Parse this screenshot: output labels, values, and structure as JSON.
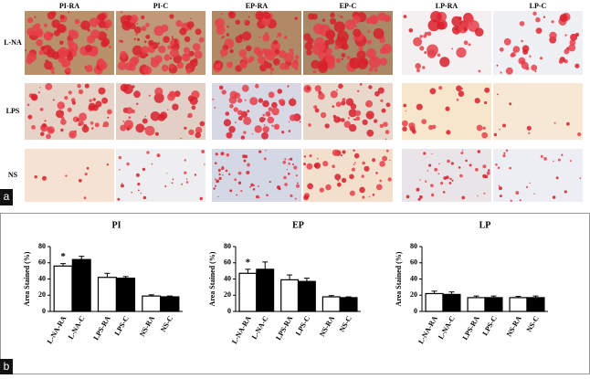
{
  "figure": {
    "column_labels": [
      "PI-RA",
      "PI-C",
      "EP-RA",
      "EP-C",
      "LP-RA",
      "LP-C"
    ],
    "row_labels": [
      "L-NA",
      "LPS",
      "NS"
    ],
    "panel_labels": [
      "a",
      "b"
    ]
  },
  "chart_data": [
    {
      "type": "bar",
      "title": "PI",
      "y_label": "Area Stained (%)",
      "categories": [
        "L-NA-RA",
        "L-NA-C",
        "LPS-RA",
        "LPS-C",
        "NS-RA",
        "NS-C"
      ],
      "values": [
        56,
        64,
        42,
        41,
        19,
        18
      ],
      "errors": [
        3,
        4,
        5,
        2,
        1.5,
        1
      ],
      "colors": [
        "#ffffff",
        "#000000",
        "#ffffff",
        "#000000",
        "#ffffff",
        "#000000"
      ],
      "ylim": [
        0,
        80
      ],
      "yticks": [
        0,
        20,
        40,
        60,
        80
      ],
      "annotations": [
        {
          "text": "*",
          "category": "L-NA-RA"
        }
      ]
    },
    {
      "type": "bar",
      "title": "EP",
      "y_label": "Area Stained (%)",
      "categories": [
        "L-NA-RA",
        "L-NA-C",
        "LPS-RA",
        "LPS-C",
        "NS-RA",
        "NS-C"
      ],
      "values": [
        47,
        52,
        39,
        37,
        18,
        17
      ],
      "errors": [
        5,
        9,
        6,
        4,
        1.5,
        1
      ],
      "colors": [
        "#ffffff",
        "#000000",
        "#ffffff",
        "#000000",
        "#ffffff",
        "#000000"
      ],
      "ylim": [
        0,
        80
      ],
      "yticks": [
        0,
        20,
        40,
        60,
        80
      ],
      "annotations": [
        {
          "text": "*",
          "category": "L-NA-RA"
        }
      ]
    },
    {
      "type": "bar",
      "title": "LP",
      "y_label": "Area Stained (%)",
      "categories": [
        "L-NA-RA",
        "L-NA-C",
        "LPS-RA",
        "LPS-C",
        "NS-RA",
        "NS-C"
      ],
      "values": [
        22,
        21,
        17,
        17,
        17,
        17
      ],
      "errors": [
        3,
        3,
        2,
        2,
        1.5,
        2
      ],
      "colors": [
        "#ffffff",
        "#000000",
        "#ffffff",
        "#000000",
        "#ffffff",
        "#000000"
      ],
      "ylim": [
        0,
        80
      ],
      "yticks": [
        0,
        20,
        40,
        60,
        80
      ],
      "annotations": []
    }
  ]
}
